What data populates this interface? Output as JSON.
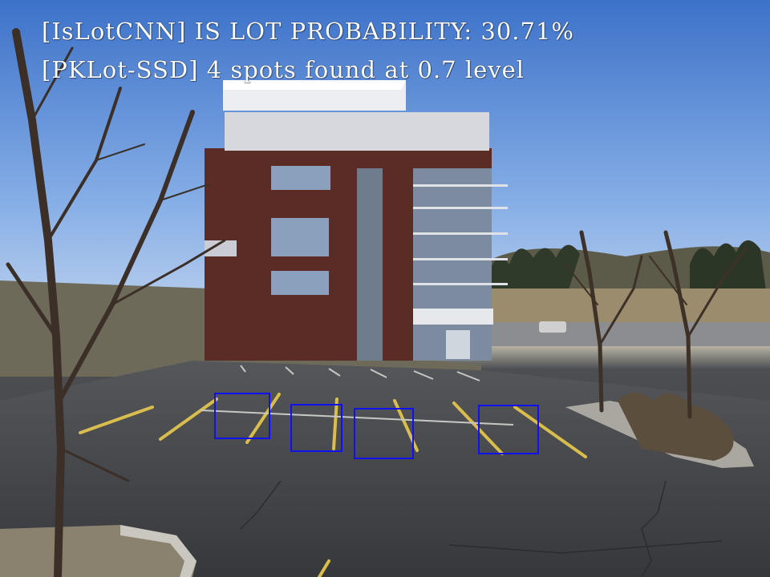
{
  "overlay": {
    "cnn_line": "[IsLotCNN] IS LOT PROBABILITY: 30.71%",
    "ssd_line": "[PKLot-SSD] 4 spots found at 0.7 level"
  },
  "detection": {
    "box_color": "#1010f0",
    "spots": [
      {
        "id": "spot-1"
      },
      {
        "id": "spot-2"
      },
      {
        "id": "spot-3"
      },
      {
        "id": "spot-4"
      }
    ]
  },
  "scene": {
    "description_colors": {
      "sky": "#5f8fd8",
      "building_brick": "#5a2a24",
      "asphalt": "#3e4044",
      "parking_line": "#d8b84a"
    }
  }
}
